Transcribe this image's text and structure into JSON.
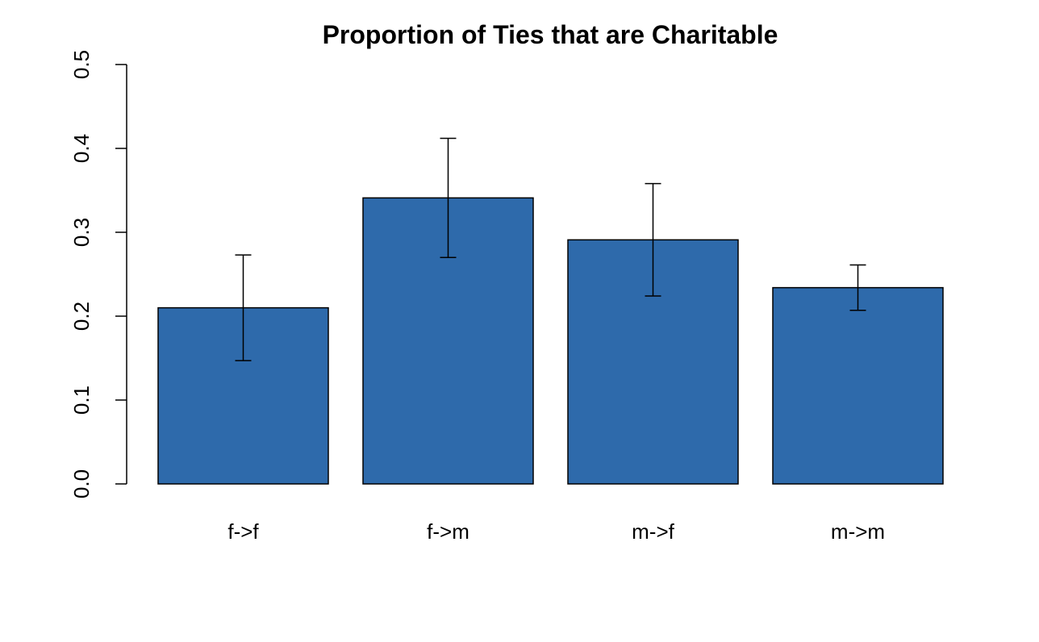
{
  "chart_data": {
    "type": "bar",
    "title": "Proportion of Ties that are Charitable",
    "xlabel": "",
    "ylabel": "",
    "categories": [
      "f->f",
      "f->m",
      "m->f",
      "m->m"
    ],
    "values": [
      0.21,
      0.341,
      0.291,
      0.234
    ],
    "error_low": [
      0.147,
      0.27,
      0.224,
      0.207
    ],
    "error_high": [
      0.273,
      0.412,
      0.358,
      0.261
    ],
    "ylim": [
      0,
      0.5
    ],
    "yticks": [
      "0.0",
      "0.1",
      "0.2",
      "0.3",
      "0.4",
      "0.5"
    ],
    "ytick_values": [
      0,
      0.1,
      0.2,
      0.3,
      0.4,
      0.5
    ],
    "grid": false,
    "legend": "none",
    "bar_color": "#2E6AAB",
    "bar_edge_color": "#000000"
  }
}
